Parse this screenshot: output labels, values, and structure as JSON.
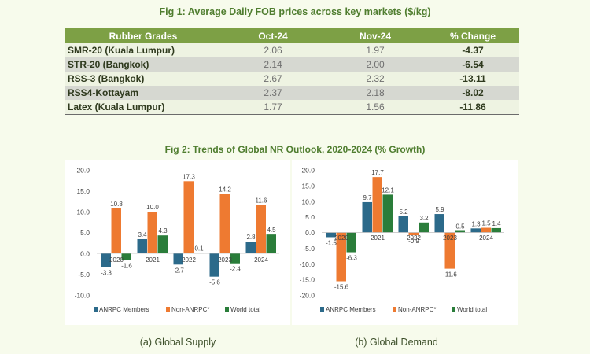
{
  "fig1": {
    "title": "Fig 1: Average Daily FOB prices across key markets ($/kg)",
    "headers": [
      "Rubber Grades",
      "Oct-24",
      "Nov-24",
      "% Change"
    ],
    "rows": [
      {
        "grade": "SMR-20 (Kuala Lumpur)",
        "oct": "2.06",
        "nov": "1.97",
        "change": "-4.37"
      },
      {
        "grade": "STR-20 (Bangkok)",
        "oct": "2.14",
        "nov": "2.00",
        "change": "-6.54"
      },
      {
        "grade": "RSS-3 (Bangkok)",
        "oct": "2.67",
        "nov": "2.32",
        "change": "-13.11"
      },
      {
        "grade": "RSS4-Kottayam",
        "oct": "2.37",
        "nov": "2.18",
        "change": "-8.02"
      },
      {
        "grade": "Latex (Kuala Lumpur)",
        "oct": "1.77",
        "nov": "1.56",
        "change": "-11.86"
      }
    ]
  },
  "fig2": {
    "title": "Fig 2: Trends of Global NR Outlook, 2020-2024 (% Growth)"
  },
  "colors": {
    "anrpc": "#2c6a8a",
    "non_anrpc": "#ee7a31",
    "world": "#2a7d3a",
    "header": "#7da045",
    "title": "#4f7d2f"
  },
  "chart_data": [
    {
      "type": "bar",
      "caption": "(a) Global Supply",
      "categories": [
        "2020",
        "2021",
        "2022",
        "2023",
        "2024"
      ],
      "series": [
        {
          "name": "ANRPC Members",
          "values": [
            -3.3,
            3.4,
            -2.7,
            -5.6,
            2.8
          ]
        },
        {
          "name": "Non-ANRPC*",
          "values": [
            10.8,
            10.0,
            17.3,
            14.2,
            11.6
          ]
        },
        {
          "name": "World total",
          "values": [
            -1.6,
            4.3,
            0.1,
            -2.4,
            4.5
          ]
        }
      ],
      "labels": [
        [
          "-3.3",
          "3.4",
          "-2.7",
          "-5.6",
          "2.8"
        ],
        [
          "10.8",
          "10.0",
          "17.3",
          "14.2",
          "11.6"
        ],
        [
          "-1.6",
          "4.3",
          "0.1",
          "-2.4",
          "4.5"
        ]
      ],
      "ylim": [
        -10,
        20
      ],
      "yticks": [
        "20.0",
        "15.0",
        "10.0",
        "5.0",
        "0.0",
        "-5.0",
        "-10.0"
      ],
      "legend": "bottom"
    },
    {
      "type": "bar",
      "caption": "(b) Global Demand",
      "categories": [
        "2020",
        "2021",
        "2022",
        "2023",
        "2024"
      ],
      "series": [
        {
          "name": "ANRPC Members",
          "values": [
            -1.5,
            9.7,
            5.2,
            5.9,
            1.3
          ]
        },
        {
          "name": "Non-ANRPC*",
          "values": [
            -15.6,
            17.7,
            -0.9,
            -11.6,
            1.5
          ]
        },
        {
          "name": "World total",
          "values": [
            -6.3,
            12.1,
            3.2,
            0.5,
            1.4
          ]
        }
      ],
      "labels": [
        [
          "-1.5",
          "9.7",
          "5.2",
          "5.9",
          "1.3"
        ],
        [
          "-15.6",
          "17.7",
          "-0.9",
          "-11.6",
          "1.5"
        ],
        [
          "-6.3",
          "12.1",
          "3.2",
          "0.5",
          "1.4"
        ]
      ],
      "ylim": [
        -20,
        20
      ],
      "yticks": [
        "20.0",
        "15.0",
        "10.0",
        "5.0",
        "0.0",
        "-5.0",
        "-10.0",
        "-15.0",
        "-20.0"
      ],
      "legend": "bottom"
    }
  ]
}
